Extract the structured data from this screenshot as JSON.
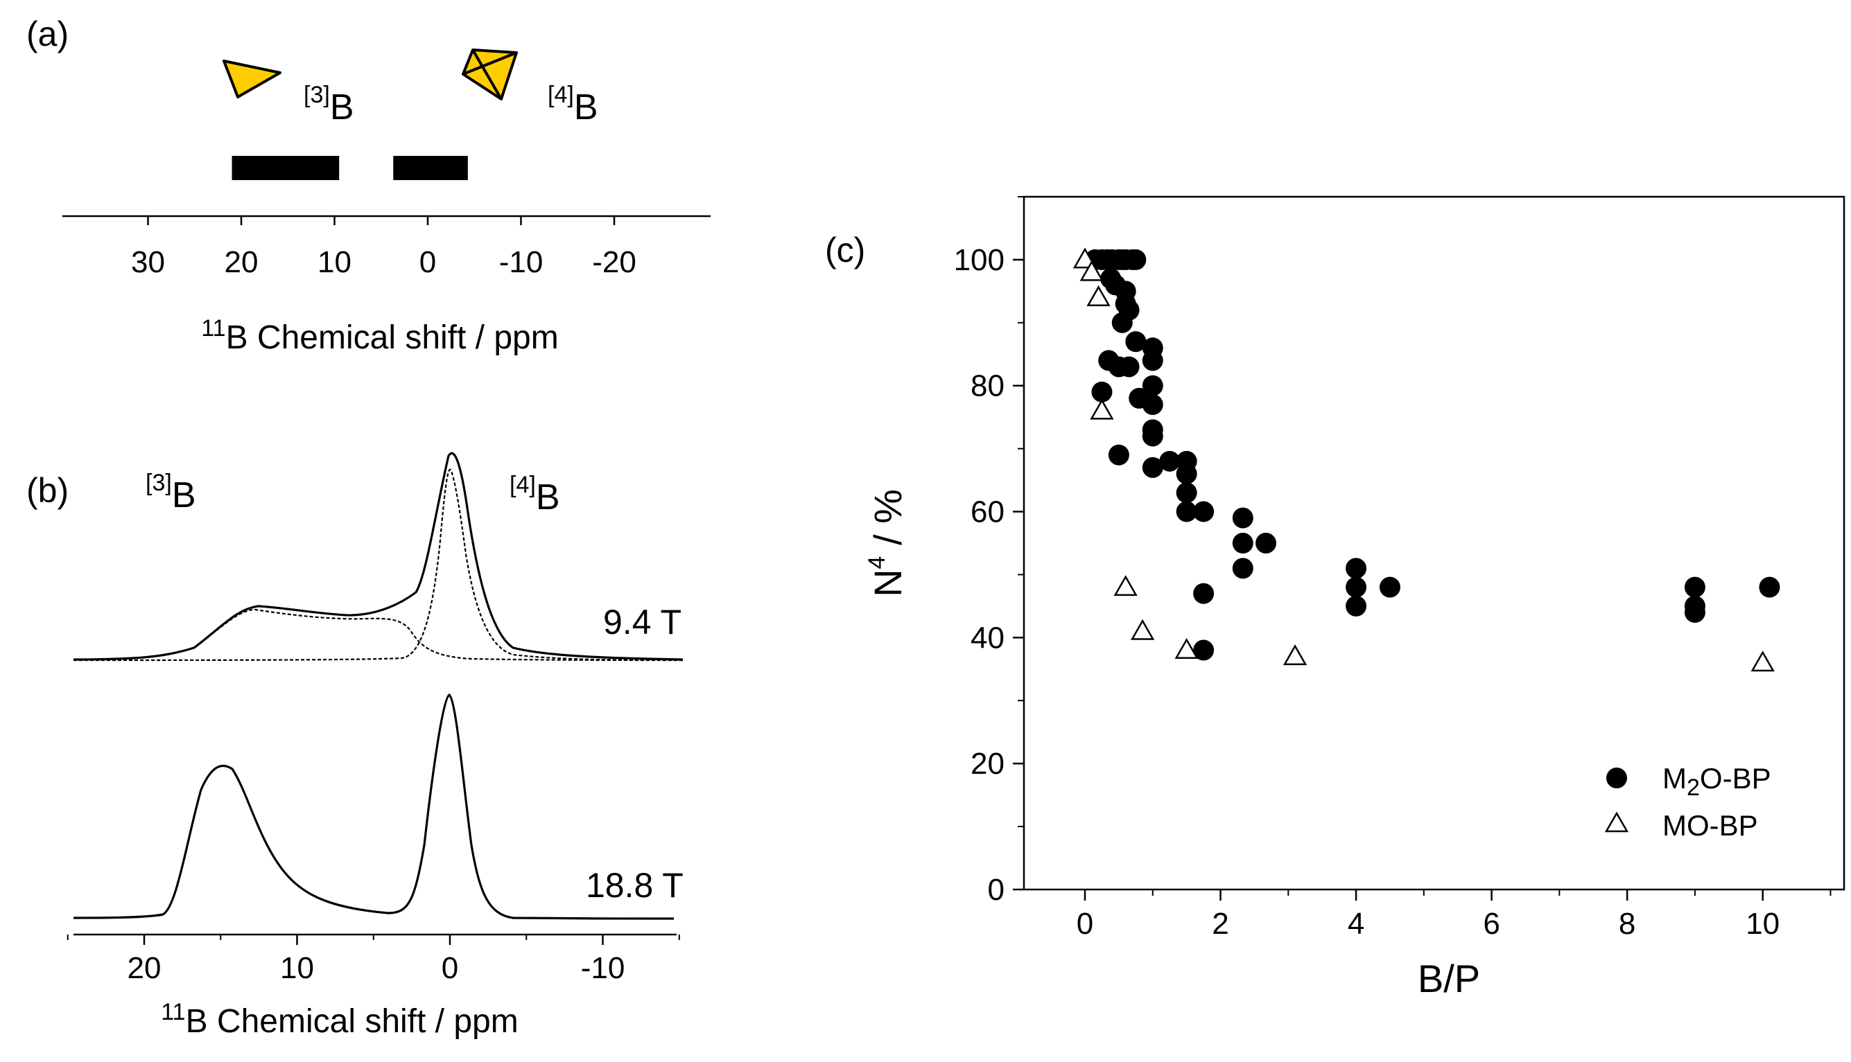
{
  "panel_a": {
    "label": "(a)",
    "species_3": {
      "sup": "[3]",
      "base": "B"
    },
    "species_4": {
      "sup": "[4]",
      "base": "B"
    },
    "axis": {
      "xlim": [
        40,
        -30
      ],
      "ticks": [
        30,
        20,
        10,
        0,
        -10,
        -20
      ],
      "tick_labels": [
        "30",
        "20",
        "10",
        "0",
        "-10",
        "-20"
      ],
      "title_sup": "11",
      "title": "B Chemical shift / ppm"
    },
    "ranges": [
      {
        "name": "[3]B range",
        "from_ppm": 21,
        "to_ppm": 9.5
      },
      {
        "name": "[4]B range",
        "from_ppm": 3.7,
        "to_ppm": -4.3
      }
    ],
    "colors": {
      "triangle": "#FFCC00",
      "tetrahedron": "#FFCC00",
      "bar": "#000000"
    }
  },
  "panel_b": {
    "label": "(b)",
    "species_3": {
      "sup": "[3]",
      "base": "B"
    },
    "species_4": {
      "sup": "[4]",
      "base": "B"
    },
    "field_low": "9.4 T",
    "field_high": "18.8 T",
    "axis": {
      "xlim": [
        25,
        -15
      ],
      "ticks": [
        20,
        10,
        0,
        -10
      ],
      "tick_labels": [
        "20",
        "10",
        "0",
        "-10"
      ],
      "title_sup": "11",
      "title": "B Chemical shift / ppm"
    }
  },
  "chart_data": {
    "type": "scatter",
    "panel_label": "(c)",
    "xlabel": "B/P",
    "ylabel_base": "N",
    "ylabel_sup": "4",
    "ylabel_unit": " / %",
    "xlim": [
      -0.9,
      11.2
    ],
    "ylim": [
      0,
      110
    ],
    "xticks": [
      0,
      2,
      4,
      6,
      8,
      10
    ],
    "yticks": [
      0,
      20,
      40,
      60,
      80,
      100
    ],
    "legend_position": "bottom-right",
    "series": [
      {
        "name": "M2O-BP",
        "legend_base": "M",
        "legend_sub": "2",
        "legend_rest": "O-BP",
        "marker": "filled-circle",
        "points": [
          [
            0.15,
            100
          ],
          [
            0.25,
            100
          ],
          [
            0.33,
            100
          ],
          [
            0.4,
            100
          ],
          [
            0.5,
            100
          ],
          [
            0.55,
            100
          ],
          [
            0.6,
            100
          ],
          [
            0.7,
            100
          ],
          [
            0.75,
            100
          ],
          [
            0.38,
            97
          ],
          [
            0.45,
            96
          ],
          [
            0.6,
            95
          ],
          [
            0.6,
            93
          ],
          [
            0.65,
            92
          ],
          [
            0.55,
            90
          ],
          [
            0.75,
            87
          ],
          [
            1.0,
            86
          ],
          [
            1.0,
            84
          ],
          [
            0.35,
            84
          ],
          [
            0.5,
            83
          ],
          [
            0.65,
            83
          ],
          [
            0.25,
            79
          ],
          [
            1.0,
            80
          ],
          [
            0.8,
            78
          ],
          [
            1.0,
            77
          ],
          [
            1.0,
            73
          ],
          [
            1.0,
            72
          ],
          [
            0.5,
            69
          ],
          [
            1.25,
            68
          ],
          [
            1.5,
            68
          ],
          [
            1.0,
            67
          ],
          [
            1.5,
            66
          ],
          [
            1.5,
            63
          ],
          [
            1.5,
            60
          ],
          [
            1.75,
            60
          ],
          [
            2.33,
            59
          ],
          [
            2.33,
            55
          ],
          [
            2.67,
            55
          ],
          [
            2.33,
            51
          ],
          [
            1.75,
            47
          ],
          [
            4.0,
            51
          ],
          [
            4.0,
            48
          ],
          [
            4.0,
            45
          ],
          [
            4.5,
            48
          ],
          [
            1.75,
            38
          ],
          [
            9.0,
            48
          ],
          [
            9.0,
            45
          ],
          [
            9.0,
            44
          ],
          [
            10.1,
            48
          ]
        ]
      },
      {
        "name": "MO-BP",
        "legend_base": "MO-BP",
        "legend_sub": "",
        "legend_rest": "",
        "marker": "open-triangle",
        "points": [
          [
            0.0,
            100
          ],
          [
            0.1,
            98
          ],
          [
            0.2,
            94
          ],
          [
            0.25,
            76
          ],
          [
            0.6,
            48
          ],
          [
            0.85,
            41
          ],
          [
            1.5,
            38
          ],
          [
            3.1,
            37
          ],
          [
            10.0,
            36
          ]
        ]
      }
    ]
  }
}
